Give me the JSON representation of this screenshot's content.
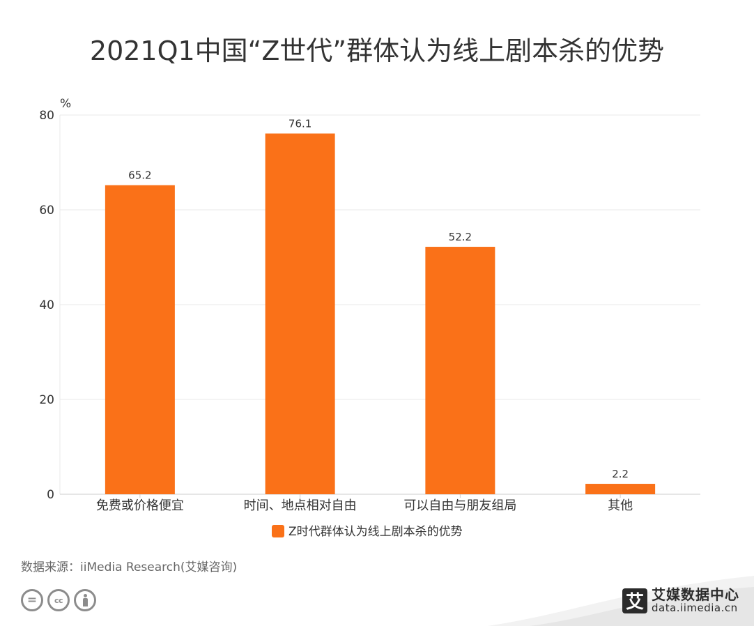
{
  "title": "2021Q1中国“Z世代”群体认为线上剧本杀的优势",
  "source": "数据来源：iiMedia Research(艾媒咨询)",
  "brand": {
    "logo_char": "艾",
    "name": "艾媒数据中心",
    "url": "data.iimedia.cn"
  },
  "license_icons": [
    "cc-nd-icon",
    "cc-icon",
    "cc-by-icon"
  ],
  "colors": {
    "bar": "#fa7118",
    "grid": "#e9e9e9",
    "axis": "#cccccc",
    "text": "#333333",
    "brand": "#2b2b2b"
  },
  "chart_data": {
    "type": "bar",
    "title": "2021Q1中国“Z世代”群体认为线上剧本杀的优势",
    "ylabel": "%",
    "xlabel": "",
    "categories": [
      "免费或价格便宜",
      "时间、地点相对自由",
      "可以自由与朋友组局",
      "其他"
    ],
    "series": [
      {
        "name": "Z时代群体认为线上剧本杀的优势",
        "values": [
          65.2,
          76.1,
          52.2,
          2.2
        ]
      }
    ],
    "data_labels": [
      "65.2",
      "76.1",
      "52.2",
      "2.2"
    ],
    "ylim": [
      0,
      80
    ],
    "yticks": [
      0,
      20,
      40,
      60,
      80
    ],
    "grid": true,
    "legend_position": "bottom"
  }
}
